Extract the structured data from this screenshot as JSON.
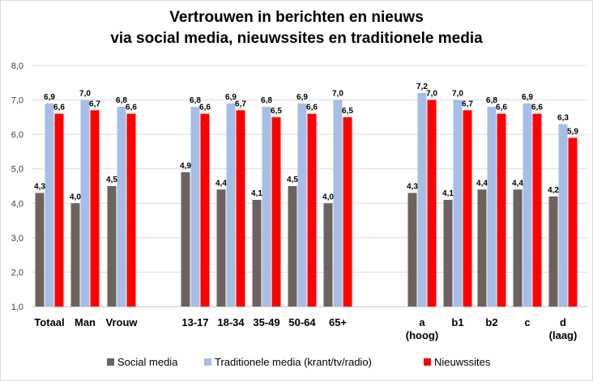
{
  "chart_data": {
    "type": "bar",
    "title": [
      "Vertrouwen in berichten en nieuws",
      "via social media, nieuwssites en traditionele media"
    ],
    "ylim": [
      1.0,
      8.0
    ],
    "yticks": [
      "1,0",
      "2,0",
      "3,0",
      "4,0",
      "5,0",
      "6,0",
      "7,0",
      "8,0"
    ],
    "grid": true,
    "legend_position": "bottom",
    "groups": [
      {
        "categories": [
          [
            "Totaal"
          ],
          [
            "Man"
          ],
          [
            "Vrouw"
          ]
        ]
      },
      {
        "categories": [
          [
            "13-17"
          ],
          [
            "18-34"
          ],
          [
            "35-49"
          ],
          [
            "50-64"
          ],
          [
            "65+"
          ]
        ]
      },
      {
        "categories": [
          [
            "a",
            "(hoog)"
          ],
          [
            "b1"
          ],
          [
            "b2"
          ],
          [
            "c"
          ],
          [
            "d",
            "(laag)"
          ]
        ]
      }
    ],
    "series": [
      {
        "name": "Social media",
        "color": "#6e625f",
        "values": [
          4.3,
          4.0,
          4.5,
          4.9,
          4.4,
          4.1,
          4.5,
          4.0,
          4.3,
          4.1,
          4.4,
          4.4,
          4.2
        ],
        "labels": [
          "4,3",
          "4,0",
          "4,5",
          "4,9",
          "4,4",
          "4,1",
          "4,5",
          "4,0",
          "4,3",
          "4,1",
          "4,4",
          "4,4",
          "4,2"
        ]
      },
      {
        "name": "Traditionele media (krant/tv/radio)",
        "color": "#a6bde6",
        "values": [
          6.9,
          7.0,
          6.8,
          6.8,
          6.9,
          6.8,
          6.9,
          7.0,
          7.2,
          7.0,
          6.8,
          6.9,
          6.3
        ],
        "labels": [
          "6,9",
          "7,0",
          "6,8",
          "6,8",
          "6,9",
          "6,8",
          "6,9",
          "7,0",
          "7,2",
          "7,0",
          "6,8",
          "6,9",
          "6,3"
        ]
      },
      {
        "name": "Nieuwssites",
        "color": "#ff0000",
        "values": [
          6.6,
          6.7,
          6.6,
          6.6,
          6.7,
          6.5,
          6.6,
          6.5,
          7.0,
          6.7,
          6.6,
          6.6,
          5.9
        ],
        "labels": [
          "6,6",
          "6,7",
          "6,6",
          "6,6",
          "6,7",
          "6,5",
          "6,6",
          "6,5",
          "7,0",
          "6,7",
          "6,6",
          "6,6",
          "5,9"
        ]
      }
    ]
  }
}
